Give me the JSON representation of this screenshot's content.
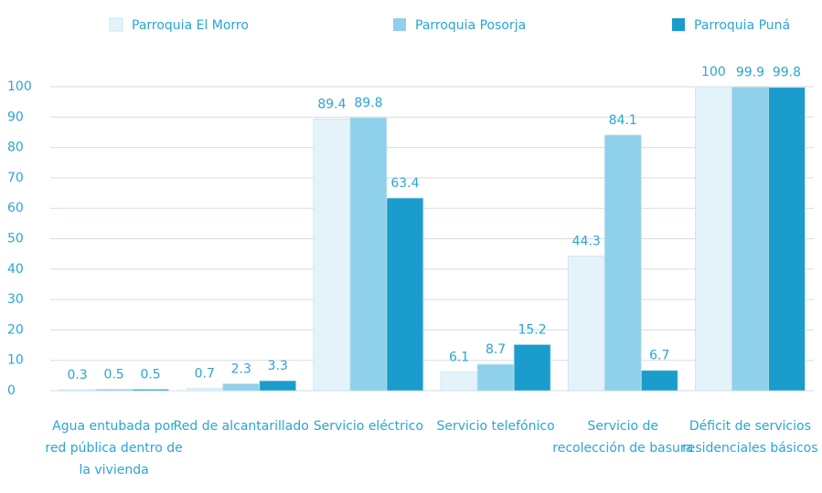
{
  "chart_data": {
    "type": "bar",
    "categories": [
      "Agua entubada por red pública dentro de la vivienda",
      "Red de alcantarillado",
      "Servicio eléctrico",
      "Servicio telefónico",
      "Servicio de recolección de basura",
      "Déficit de servicios residenciales básicos"
    ],
    "series": [
      {
        "name": "Parroquia El Morro",
        "color": "#e4f3fa",
        "values": [
          0.3,
          0.7,
          89.4,
          6.1,
          44.3,
          100
        ]
      },
      {
        "name": "Parroquia Posorja",
        "color": "#8fd0ea",
        "values": [
          0.5,
          2.3,
          89.8,
          8.7,
          84.1,
          99.9
        ]
      },
      {
        "name": "Parroquia Puná",
        "color": "#1a9ccc",
        "values": [
          0.5,
          3.3,
          63.4,
          15.2,
          6.7,
          99.8
        ]
      }
    ],
    "ylim": [
      0,
      100
    ],
    "yticks": [
      0,
      10,
      20,
      30,
      40,
      50,
      60,
      70,
      80,
      90,
      100
    ],
    "grid": true
  }
}
